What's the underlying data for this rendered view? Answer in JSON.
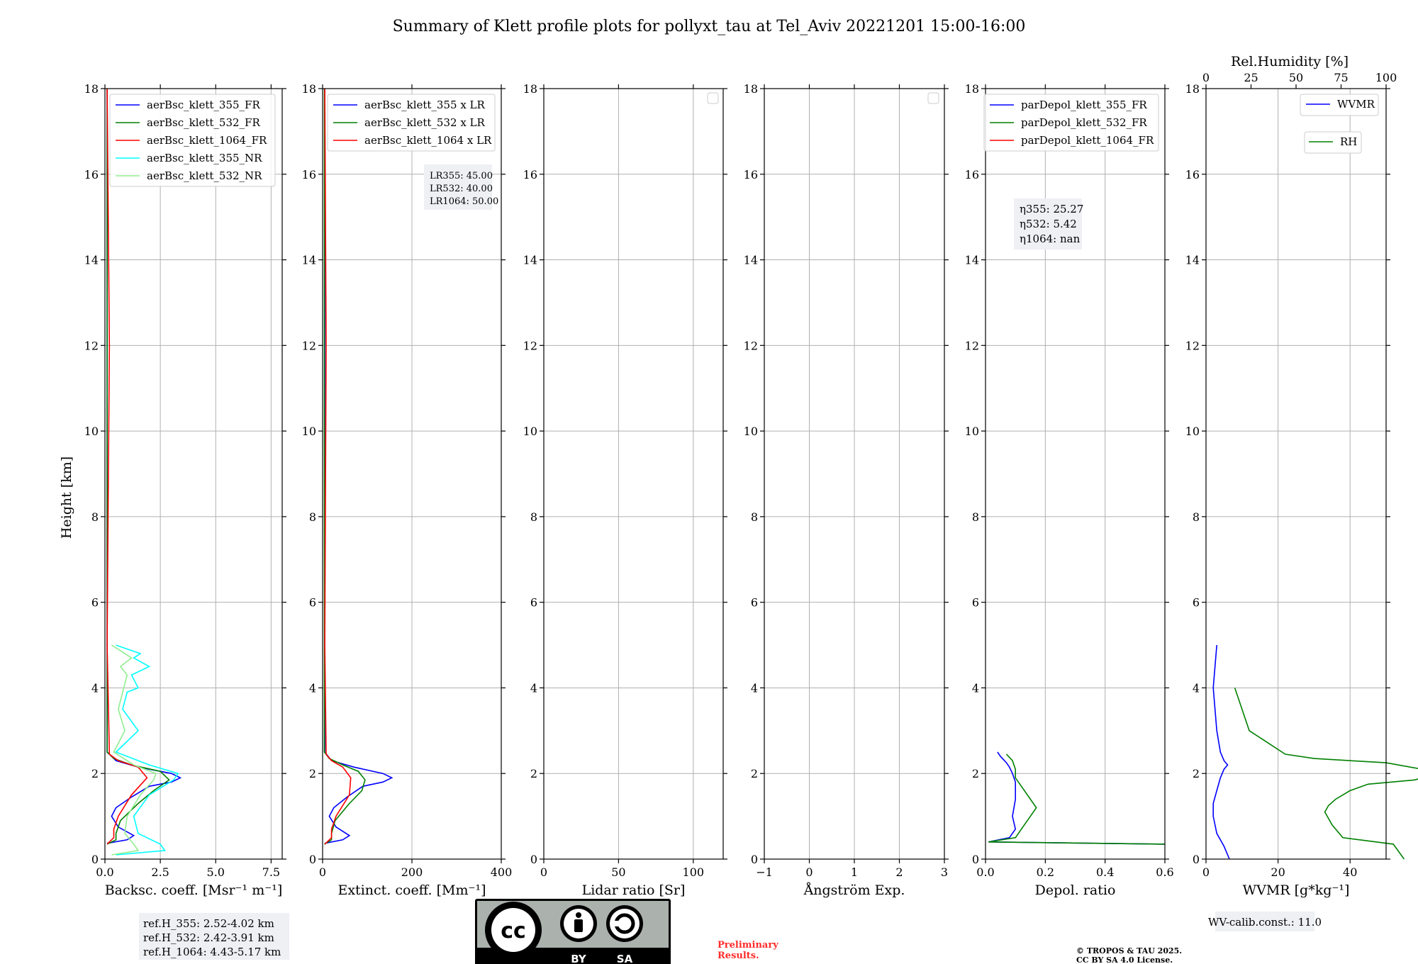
{
  "figure": {
    "title": "Summary of Klett profile plots for pollyxt_tau at Tel_Aviv 20221201 15:00-16:00",
    "ylabel": "Height [km]",
    "ref_heights": [
      "ref.H_355: 2.52-4.02 km",
      "ref.H_532: 2.42-3.91 km",
      "ref.H_1064: 4.43-5.17 km"
    ],
    "wv_calib": "WV-calib.const.: 11.0",
    "preliminary": [
      "Preliminary",
      "Results."
    ],
    "copyright": [
      "© TROPOS & TAU 2025.",
      "CC BY SA 4.0 License."
    ],
    "license_badge": {
      "cc": "cc",
      "by": "BY",
      "sa": "SA"
    }
  },
  "chart_data": [
    {
      "id": "backscatter",
      "type": "line",
      "xlabel": "Backsc. coeff. [Msr⁻¹ m⁻¹]",
      "ylabel": "Height [km]",
      "xlim": [
        0,
        8
      ],
      "ylim": [
        0,
        18
      ],
      "xticks": [
        0,
        2.5,
        5,
        7.5
      ],
      "xticklabels": [
        "0.0",
        "2.5",
        "5.0",
        "7.5"
      ],
      "yticks": [
        0,
        2,
        4,
        6,
        8,
        10,
        12,
        14,
        16,
        18
      ],
      "grid": true,
      "legend": {
        "placement": "top-right",
        "entries": [
          "aerBsc_klett_355_FR",
          "aerBsc_klett_532_FR",
          "aerBsc_klett_1064_FR",
          "aerBsc_klett_355_NR",
          "aerBsc_klett_532_NR"
        ]
      },
      "series": [
        {
          "name": "aerBsc_klett_355_FR",
          "color": "#0000ff",
          "x": [
            0.1,
            1.0,
            1.3,
            0.6,
            0.3,
            0.5,
            1.2,
            2.0,
            3.0,
            3.4,
            3.0,
            1.5,
            0.5,
            0.1,
            0.1,
            0.1,
            0.1
          ],
          "y": [
            0.37,
            0.45,
            0.55,
            0.75,
            1.0,
            1.2,
            1.45,
            1.7,
            1.8,
            1.9,
            2.0,
            2.15,
            2.3,
            2.5,
            5.3,
            10,
            18
          ]
        },
        {
          "name": "aerBsc_klett_532_FR",
          "color": "#008000",
          "x": [
            0.1,
            0.5,
            0.5,
            0.7,
            1.5,
            2.2,
            2.9,
            2.5,
            1.2,
            0.4,
            0.1,
            0.1,
            0.1
          ],
          "y": [
            0.35,
            0.45,
            0.6,
            0.9,
            1.3,
            1.6,
            1.85,
            2.05,
            2.2,
            2.35,
            2.5,
            10,
            18
          ]
        },
        {
          "name": "aerBsc_klett_1064_FR",
          "color": "#ff0000",
          "x": [
            0.1,
            0.4,
            0.4,
            0.6,
            1.2,
            1.9,
            1.5,
            0.6,
            0.2,
            0.1,
            0.2,
            0.1
          ],
          "y": [
            0.35,
            0.5,
            0.7,
            1.0,
            1.5,
            1.9,
            2.15,
            2.3,
            2.45,
            5,
            12,
            18
          ]
        },
        {
          "name": "aerBsc_klett_355_NR",
          "color": "#00ffff",
          "x": [
            0.5,
            2.7,
            2.5,
            1.5,
            1.3,
            2.0,
            3.1,
            3.3,
            2.0,
            0.5,
            1.5,
            0.8,
            1.0,
            1.5,
            1.2,
            2.0,
            1.3,
            1.6,
            0.5
          ],
          "y": [
            0.1,
            0.2,
            0.35,
            0.6,
            1.0,
            1.5,
            1.85,
            2.0,
            2.2,
            2.5,
            3.0,
            3.5,
            3.9,
            4.0,
            4.3,
            4.5,
            4.7,
            4.8,
            5.0
          ]
        },
        {
          "name": "aerBsc_klett_532_NR",
          "color": "#90ee90",
          "x": [
            0.3,
            1.5,
            1.3,
            0.9,
            1.0,
            1.6,
            2.2,
            2.3,
            1.3,
            0.4,
            0.9,
            0.6,
            0.8,
            1.0,
            0.7,
            1.2,
            0.6,
            0.3
          ],
          "y": [
            0.1,
            0.2,
            0.35,
            0.6,
            1.0,
            1.5,
            1.85,
            2.0,
            2.2,
            2.5,
            3.0,
            3.5,
            3.9,
            4.3,
            4.5,
            4.7,
            4.9,
            5.0
          ]
        }
      ]
    },
    {
      "id": "extinction",
      "type": "line",
      "xlabel": "Extinct. coeff. [Mm⁻¹]",
      "xlim": [
        0,
        400
      ],
      "ylim": [
        0,
        18
      ],
      "xticks": [
        0,
        200,
        400
      ],
      "xticklabels": [
        "0",
        "200",
        "400"
      ],
      "yticks": [
        0,
        2,
        4,
        6,
        8,
        10,
        12,
        14,
        16,
        18
      ],
      "grid": true,
      "legend": {
        "placement": "top-right",
        "entries": [
          "aerBsc_klett_355 x LR",
          "aerBsc_klett_532 x LR",
          "aerBsc_klett_1064 x LR"
        ]
      },
      "annotation": [
        "LR355: 45.00",
        "LR532: 40.00",
        "LR1064: 50.00"
      ],
      "series": [
        {
          "name": "aerBsc_klett_355 x LR",
          "color": "#0000ff",
          "x": [
            5,
            45,
            60,
            30,
            15,
            25,
            55,
            90,
            135,
            155,
            135,
            70,
            20,
            5,
            5,
            5
          ],
          "y": [
            0.37,
            0.45,
            0.55,
            0.75,
            1.0,
            1.2,
            1.45,
            1.7,
            1.8,
            1.9,
            2.0,
            2.15,
            2.3,
            2.5,
            10,
            18
          ]
        },
        {
          "name": "aerBsc_klett_532 x LR",
          "color": "#008000",
          "x": [
            4,
            20,
            20,
            28,
            60,
            88,
            95,
            80,
            45,
            15,
            4,
            4
          ],
          "y": [
            0.35,
            0.45,
            0.6,
            0.9,
            1.3,
            1.6,
            1.85,
            2.05,
            2.2,
            2.35,
            2.5,
            18
          ]
        },
        {
          "name": "aerBsc_klett_1064 x LR",
          "color": "#ff0000",
          "x": [
            5,
            20,
            20,
            30,
            60,
            63,
            45,
            20,
            8,
            5,
            8,
            5
          ],
          "y": [
            0.35,
            0.5,
            0.7,
            1.0,
            1.5,
            1.9,
            2.15,
            2.3,
            2.45,
            5,
            12,
            18
          ]
        }
      ]
    },
    {
      "id": "lidar_ratio",
      "type": "line",
      "xlabel": "Lidar ratio [Sr]",
      "xlim": [
        0,
        120
      ],
      "ylim": [
        0,
        18
      ],
      "xticks": [
        0,
        50,
        100
      ],
      "xticklabels": [
        "0",
        "50",
        "100"
      ],
      "yticks": [
        0,
        2,
        4,
        6,
        8,
        10,
        12,
        14,
        16,
        18
      ],
      "grid": true,
      "legend": {
        "placement": "top-right",
        "entries": []
      },
      "series": []
    },
    {
      "id": "angstrom",
      "type": "line",
      "xlabel": "Ångström Exp.",
      "xlim": [
        -1,
        3
      ],
      "ylim": [
        0,
        18
      ],
      "xticks": [
        -1,
        0,
        1,
        2,
        3
      ],
      "xticklabels": [
        "−1",
        "0",
        "1",
        "2",
        "3"
      ],
      "yticks": [
        0,
        2,
        4,
        6,
        8,
        10,
        12,
        14,
        16,
        18
      ],
      "grid": true,
      "legend": {
        "placement": "top-right",
        "entries": []
      },
      "series": []
    },
    {
      "id": "depol",
      "type": "line",
      "xlabel": "Depol. ratio",
      "xlim": [
        0,
        0.6
      ],
      "ylim": [
        0,
        18
      ],
      "xticks": [
        0,
        0.2,
        0.4,
        0.6
      ],
      "xticklabels": [
        "0.0",
        "0.2",
        "0.4",
        "0.6"
      ],
      "yticks": [
        0,
        2,
        4,
        6,
        8,
        10,
        12,
        14,
        16,
        18
      ],
      "grid": true,
      "legend": {
        "placement": "top-right",
        "entries": [
          "parDepol_klett_355_FR",
          "parDepol_klett_532_FR",
          "parDepol_klett_1064_FR"
        ]
      },
      "annotation": [
        "η355: 25.27",
        "η532: 5.42",
        "η1064: nan"
      ],
      "series": [
        {
          "name": "parDepol_klett_355_FR",
          "color": "#0000ff",
          "x": [
            0.6,
            0.01,
            0.08,
            0.1,
            0.09,
            0.1,
            0.1,
            0.09,
            0.08,
            0.07,
            0.05,
            0.04
          ],
          "y": [
            0.35,
            0.4,
            0.5,
            0.7,
            1.0,
            1.4,
            1.8,
            2.0,
            2.15,
            2.25,
            2.4,
            2.5
          ]
        },
        {
          "name": "parDepol_klett_532_FR",
          "color": "#008000",
          "x": [
            0.6,
            0.01,
            0.1,
            0.12,
            0.15,
            0.17,
            0.15,
            0.12,
            0.1,
            0.1,
            0.09,
            0.07
          ],
          "y": [
            0.35,
            0.4,
            0.5,
            0.7,
            1.0,
            1.2,
            1.4,
            1.7,
            1.9,
            2.1,
            2.3,
            2.45
          ]
        },
        {
          "name": "parDepol_klett_1064_FR",
          "color": "#ff0000",
          "x": [],
          "y": []
        }
      ]
    },
    {
      "id": "wvmr_rh",
      "type": "line",
      "xlabel": "WVMR [g*kg⁻¹]",
      "xlabel_top": "Rel.Humidity [%]",
      "xlim": [
        0,
        50
      ],
      "xlim_top": [
        0,
        100
      ],
      "ylim": [
        0,
        18
      ],
      "xticks": [
        0,
        20,
        40
      ],
      "xticklabels": [
        "0",
        "20",
        "40"
      ],
      "xticks_top": [
        0,
        25,
        50,
        75,
        100
      ],
      "xticklabels_top": [
        "0",
        "25",
        "50",
        "75",
        "100"
      ],
      "yticks": [
        0,
        2,
        4,
        6,
        8,
        10,
        12,
        14,
        16,
        18
      ],
      "grid": true,
      "legend": {
        "placement": "top-right",
        "entries": [
          "WVMR",
          "RH"
        ]
      },
      "series": [
        {
          "name": "WVMR",
          "color": "#0000ff",
          "x": [
            6.5,
            5,
            3,
            2,
            2,
            3,
            4,
            5,
            6,
            5,
            4,
            3,
            2,
            3
          ],
          "y": [
            0,
            0.3,
            0.6,
            1.0,
            1.3,
            1.6,
            1.9,
            2.1,
            2.2,
            2.3,
            2.5,
            3.0,
            4.0,
            5.0
          ]
        },
        {
          "name": "RH",
          "color": "#008000",
          "x": [
            55,
            52,
            38,
            35,
            33,
            34,
            36,
            40,
            45,
            58,
            62,
            60,
            50,
            30,
            22,
            12,
            8
          ],
          "y": [
            0,
            0.35,
            0.5,
            0.8,
            1.1,
            1.25,
            1.4,
            1.6,
            1.75,
            1.85,
            1.95,
            2.1,
            2.25,
            2.35,
            2.45,
            3.0,
            4.0
          ]
        }
      ]
    }
  ]
}
